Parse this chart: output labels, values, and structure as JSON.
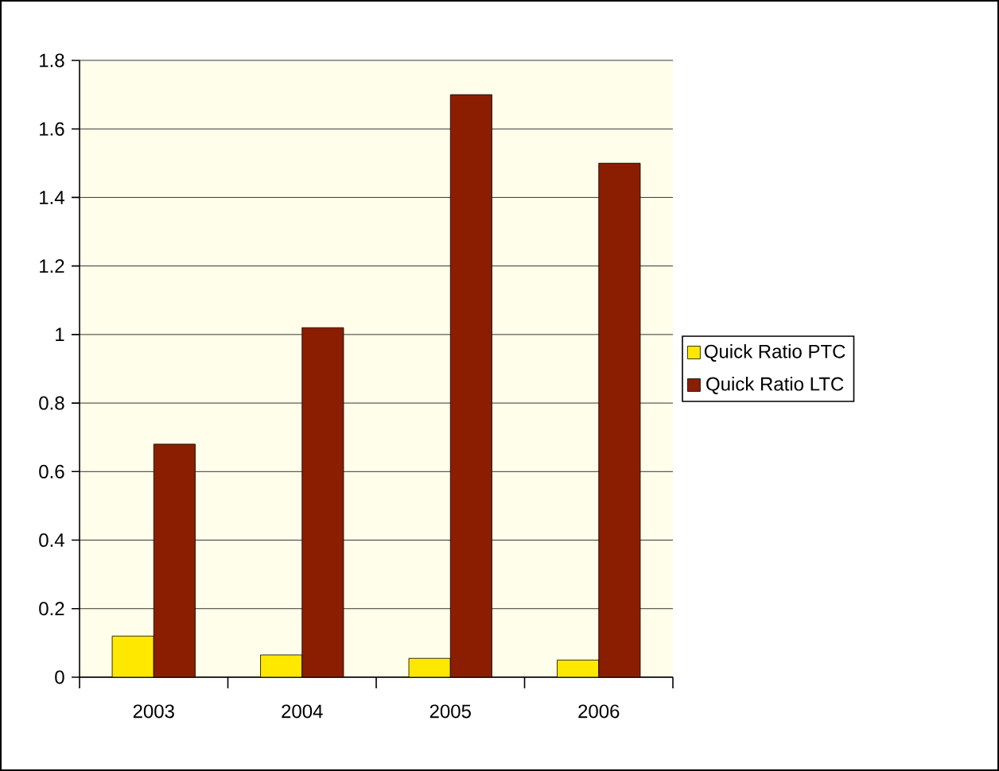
{
  "chart_data": {
    "type": "bar",
    "categories": [
      "2003",
      "2004",
      "2005",
      "2006"
    ],
    "series": [
      {
        "name": "Quick Ratio PTC",
        "color": "#ffe800",
        "values": [
          0.12,
          0.065,
          0.055,
          0.05
        ]
      },
      {
        "name": "Quick Ratio LTC",
        "color": "#8b1e00",
        "values": [
          0.68,
          1.02,
          1.7,
          1.5
        ]
      }
    ],
    "ylim": [
      0,
      1.8
    ],
    "yticks": [
      0,
      0.2,
      0.4,
      0.6,
      0.8,
      1,
      1.2,
      1.4,
      1.6,
      1.8
    ],
    "grid": "y",
    "legend": "right"
  }
}
